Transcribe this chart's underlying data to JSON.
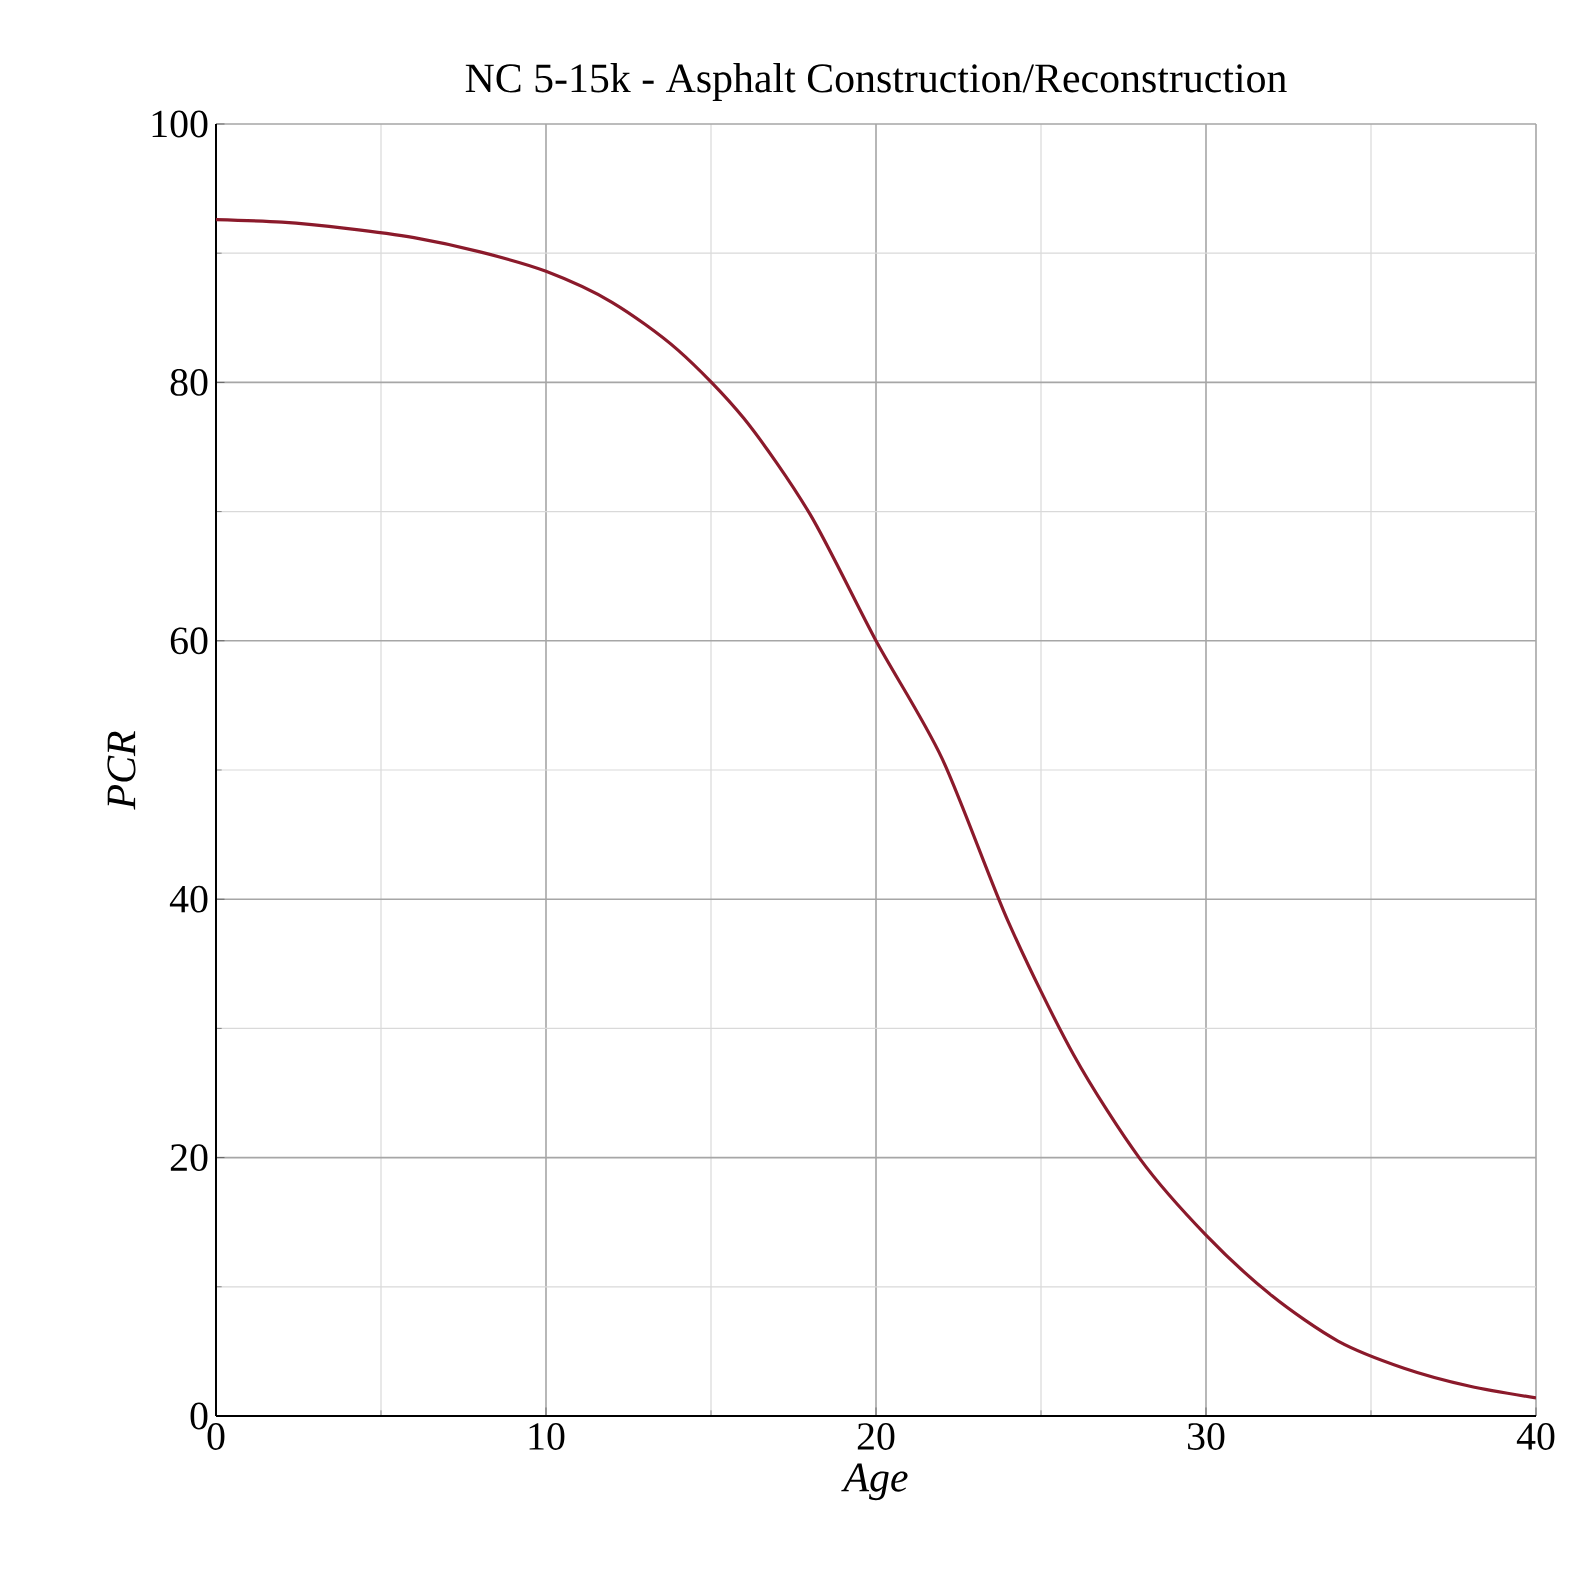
{
  "chart_data": {
    "type": "line",
    "title": "NC 5-15k - Asphalt Construction/Reconstruction",
    "xlabel": "Age",
    "ylabel": "PCR",
    "x": [
      0,
      2,
      4,
      6,
      8,
      10,
      12,
      14,
      16,
      18,
      20,
      22,
      24,
      26,
      28,
      30,
      32,
      34,
      36,
      38,
      40
    ],
    "series": [
      {
        "color": "#8b1a2b",
        "values": [
          92.6,
          92.4,
          91.9,
          91.2,
          90.1,
          88.6,
          86.2,
          82.5,
          77.2,
          69.8,
          60.0,
          50.9,
          38.3,
          27.9,
          19.9,
          14.0,
          9.3,
          5.8,
          3.7,
          2.3,
          1.4
        ]
      }
    ],
    "xlim": [
      0,
      40
    ],
    "ylim": [
      0,
      100
    ],
    "xticks": [
      0,
      10,
      20,
      30,
      40
    ],
    "yticks": [
      0,
      20,
      40,
      60,
      80,
      100
    ],
    "grid": true,
    "marker": "none",
    "line_style": "solid"
  }
}
